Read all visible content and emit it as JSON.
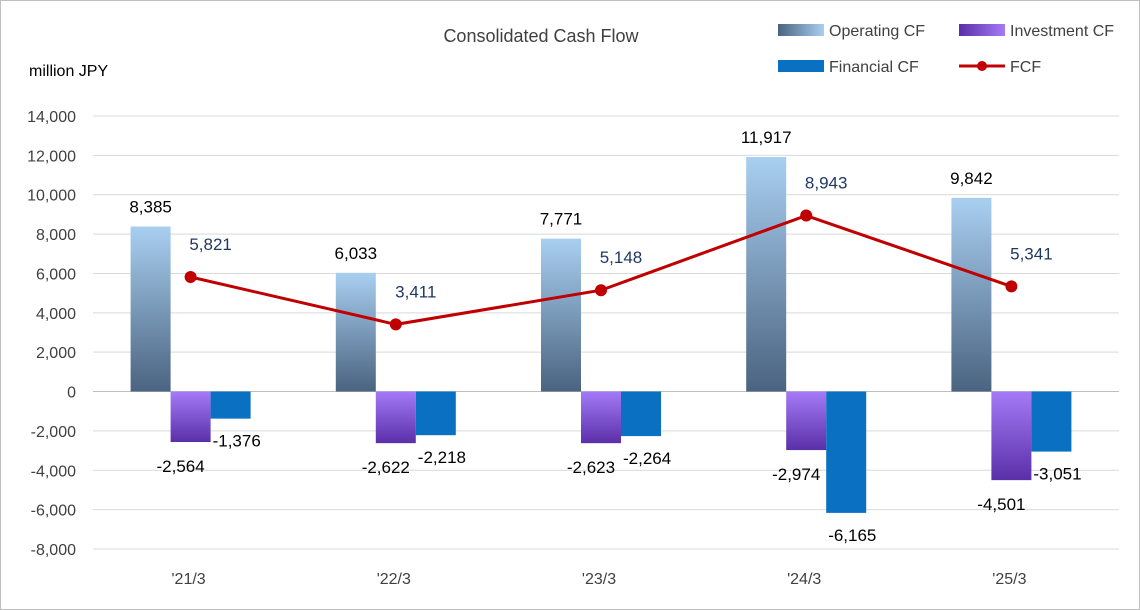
{
  "chart_data": {
    "type": "bar",
    "title": "Consolidated Cash Flow",
    "ylabel": "million JPY",
    "xlabel": "",
    "categories": [
      "'21/3",
      "'22/3",
      "'23/3",
      "'24/3",
      "'25/3"
    ],
    "series": [
      {
        "name": "Operating CF",
        "kind": "bar",
        "color": "#6f8ba6",
        "values": [
          8385,
          6033,
          7771,
          11917,
          9842
        ],
        "labels": [
          "8,385",
          "6,033",
          "7,771",
          "11,917",
          "9,842"
        ]
      },
      {
        "name": "Investment CF",
        "kind": "bar",
        "color": "#7b3fd9",
        "values": [
          -2564,
          -2622,
          -2623,
          -2974,
          -4501
        ],
        "labels": [
          "-2,564",
          "-2,622",
          "-2,623",
          "-2,974",
          "-4,501"
        ]
      },
      {
        "name": "Financial CF",
        "kind": "bar",
        "color": "#0a70c2",
        "values": [
          -1376,
          -2218,
          -2264,
          -6165,
          -3051
        ],
        "labels": [
          "-1,376",
          "-2,218",
          "-2,264",
          "-6,165",
          "-3,051"
        ]
      },
      {
        "name": "FCF",
        "kind": "line",
        "color": "#c00000",
        "values": [
          5821,
          3411,
          5148,
          8943,
          5341
        ],
        "labels": [
          "5,821",
          "3,411",
          "5,148",
          "8,943",
          "5,341"
        ]
      }
    ],
    "ylim": [
      -8000,
      14000
    ],
    "yticks": [
      14000,
      12000,
      10000,
      8000,
      6000,
      4000,
      2000,
      0,
      -2000,
      -4000,
      -6000,
      -8000
    ],
    "ytick_labels": [
      "14,000",
      "12,000",
      "10,000",
      "8,000",
      "6,000",
      "4,000",
      "2,000",
      "0",
      "-2,000",
      "-4,000",
      "-6,000",
      "-8,000"
    ],
    "grid": true,
    "legend_position": "top-right",
    "label_colors": {
      "bar": "#000000",
      "fcf": "#1f3864"
    }
  }
}
